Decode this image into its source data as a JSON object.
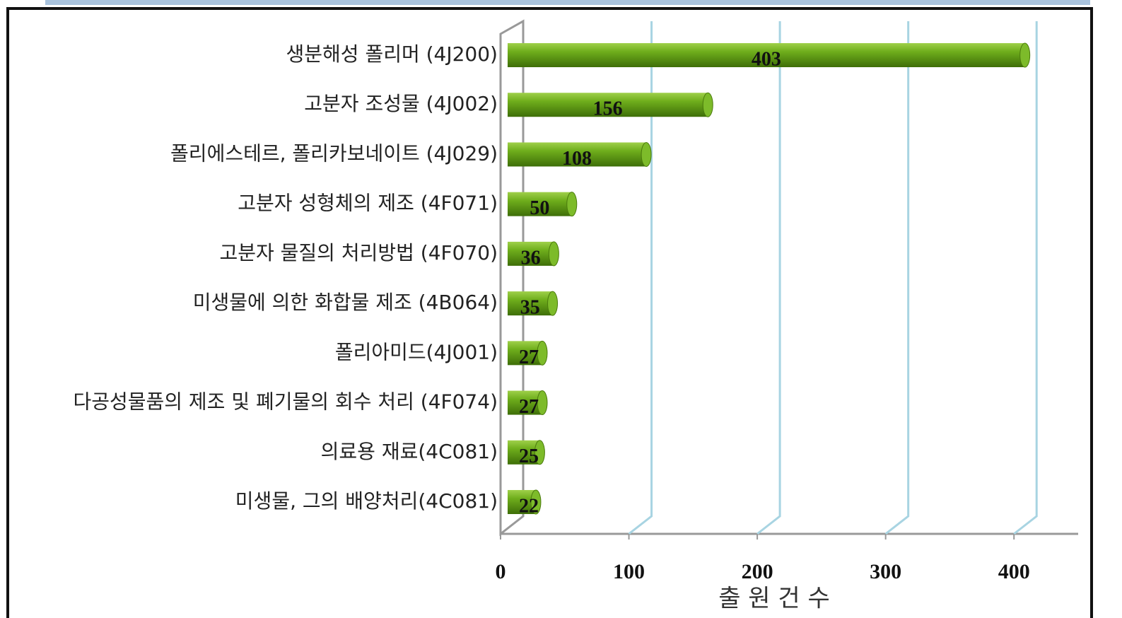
{
  "chart_data": {
    "type": "bar",
    "orientation": "horizontal",
    "categories": [
      "생분해성 폴리머 (4J200)",
      "고분자 조성물 (4J002)",
      "폴리에스테르, 폴리카보네이트 (4J029)",
      "고분자 성형체의 제조 (4F071)",
      "고분자 물질의 처리방법 (4F070)",
      "미생물에 의한 화합물 제조 (4B064)",
      "폴리아미드(4J001)",
      "다공성물품의 제조 및  폐기물의 회수 처리 (4F074)",
      "의료용 재료(4C081)",
      "미생물, 그의 배양처리(4C081)"
    ],
    "values": [
      403,
      156,
      108,
      50,
      36,
      35,
      27,
      27,
      25,
      22
    ],
    "color": "#5c9a12",
    "xlabel": "출 원 건 수",
    "xlim": [
      0,
      450
    ],
    "xticks": [
      0,
      100,
      200,
      300,
      400
    ],
    "grid": true
  }
}
